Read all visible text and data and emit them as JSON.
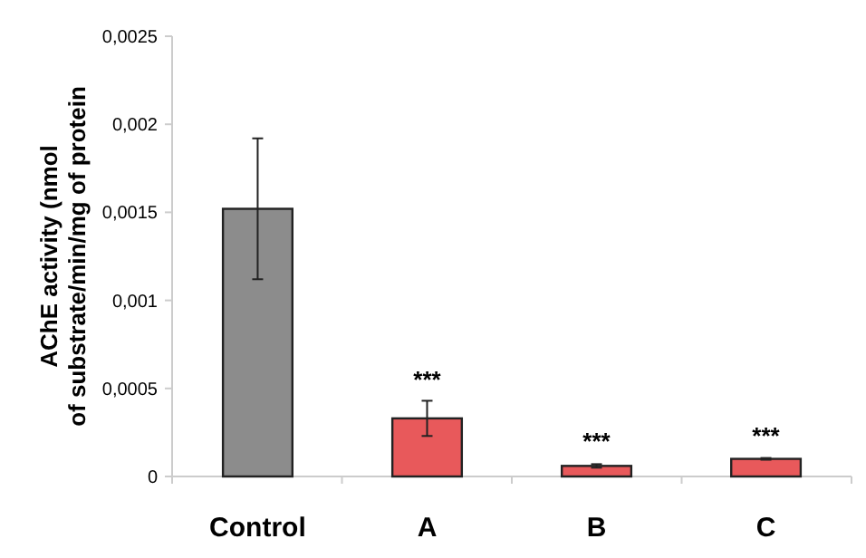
{
  "chart_data": {
    "type": "bar",
    "ylabel": "AChE activity (nmol of substrate/min/mg of protein",
    "categories": [
      "Control",
      "A",
      "B",
      "C"
    ],
    "values": [
      0.00152,
      0.00033,
      6e-05,
      0.0001
    ],
    "colors": [
      "#8c8c8c",
      "#e8595b",
      "#e8595b",
      "#e8595b"
    ],
    "errors": [
      0.0004,
      0.0001,
      1e-05,
      5e-06
    ],
    "ylim": [
      0,
      0.0025
    ],
    "yticks": [
      {
        "value": 0,
        "label": "0"
      },
      {
        "value": 0.0005,
        "label": "0,0005"
      },
      {
        "value": 0.001,
        "label": "0,001"
      },
      {
        "value": 0.0015,
        "label": "0,0015"
      },
      {
        "value": 0.002,
        "label": "0,002"
      },
      {
        "value": 0.0025,
        "label": "0,0025"
      }
    ],
    "annotations": [
      {
        "text": "***",
        "x": "A",
        "y": 0.00042
      },
      {
        "text": "***",
        "x": "B",
        "y": 7e-05
      },
      {
        "text": "***",
        "x": "C",
        "y": 0.000105
      }
    ]
  }
}
